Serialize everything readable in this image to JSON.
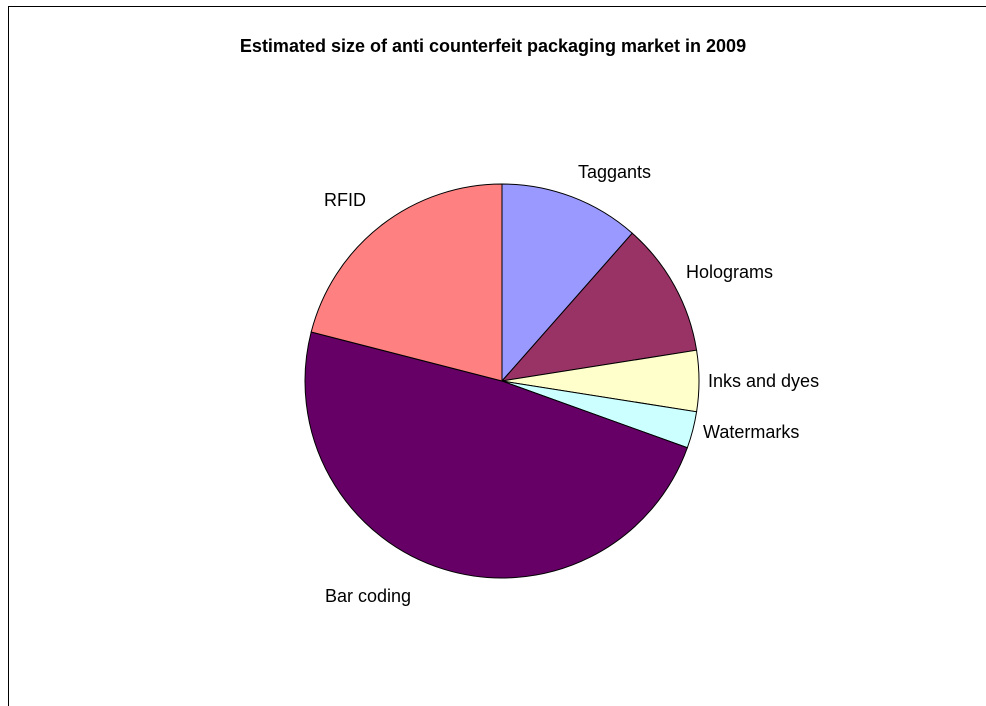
{
  "chart_data": {
    "type": "pie",
    "title": "Estimated size of anti counterfeit packaging market in 2009",
    "slices": [
      {
        "label": "Taggants",
        "value": 11.5,
        "color": "#9999ff"
      },
      {
        "label": "Holograms",
        "value": 11.0,
        "color": "#993366"
      },
      {
        "label": "Inks and dyes",
        "value": 5.0,
        "color": "#ffffcc"
      },
      {
        "label": "Watermarks",
        "value": 3.0,
        "color": "#ccffff"
      },
      {
        "label": "Bar coding",
        "value": 48.5,
        "color": "#660066"
      },
      {
        "label": "RFID",
        "value": 21.0,
        "color": "#ff8080"
      }
    ],
    "legend": false
  }
}
